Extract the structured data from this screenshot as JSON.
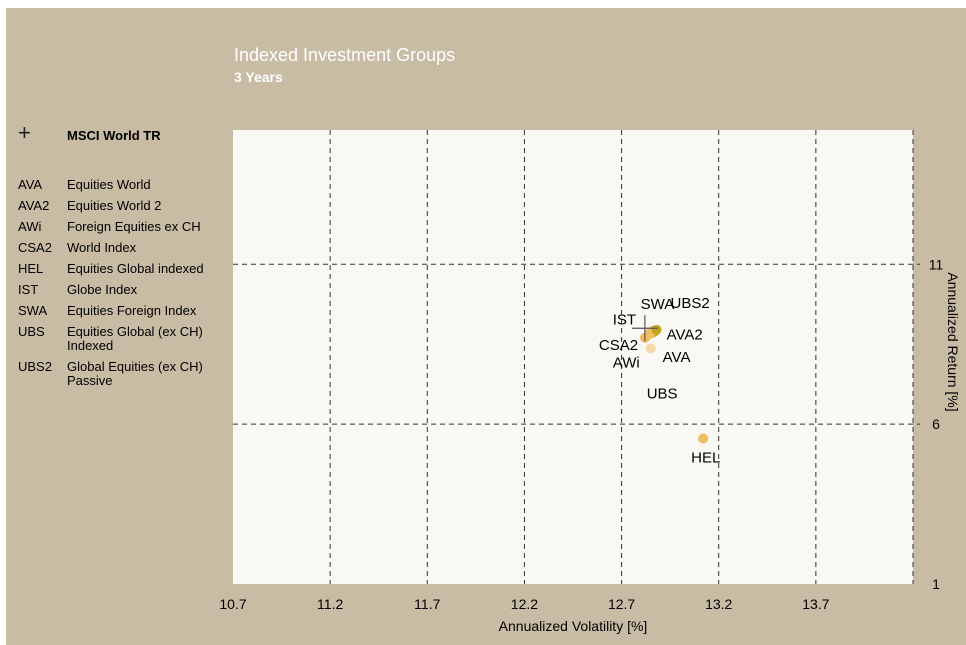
{
  "title": "Indexed Investment Groups",
  "subtitle": "3 Years",
  "benchmark": {
    "symbol": "+",
    "label": "MSCI World TR"
  },
  "legend": [
    {
      "code": "AVA",
      "desc": "Equities World"
    },
    {
      "code": "AVA2",
      "desc": "Equities World 2"
    },
    {
      "code": "AWi",
      "desc": "Foreign Equities ex CH"
    },
    {
      "code": "CSA2",
      "desc": "World Index"
    },
    {
      "code": "HEL",
      "desc": "Equities Global indexed"
    },
    {
      "code": "IST",
      "desc": "Globe Index"
    },
    {
      "code": "SWA",
      "desc": "Equities Foreign Index"
    },
    {
      "code": "UBS",
      "desc": "Equities Global (ex CH)\nIndexed"
    },
    {
      "code": "UBS2",
      "desc": "Global Equities (ex CH)\nPassive"
    }
  ],
  "chart_data": {
    "type": "scatter",
    "xlabel": "Annualized Volatility [%]",
    "ylabel": "Annualized Return [%]",
    "xlim": [
      10.7,
      14.2
    ],
    "ylim": [
      1,
      15.2
    ],
    "xticks": [
      10.7,
      11.2,
      11.7,
      12.2,
      12.7,
      13.2,
      13.7
    ],
    "yticks": [
      1,
      6,
      11
    ],
    "grid": "dashed",
    "colors": {
      "background": "#c8bca5",
      "plot": "#f9f8f5",
      "light": "#f5d9a8",
      "mid": "#f0bd60",
      "dark": "#c5a51f"
    },
    "points": [
      {
        "label": "AVA",
        "x": 12.86,
        "y": 8.85,
        "color": "#f0bd60"
      },
      {
        "label": "AVA2",
        "x": 12.87,
        "y": 8.9,
        "color": "#c5a51f"
      },
      {
        "label": "AWi",
        "x": 12.84,
        "y": 8.8,
        "color": "#f0bd60"
      },
      {
        "label": "CSA2",
        "x": 12.82,
        "y": 8.7,
        "color": "#f0bd60"
      },
      {
        "label": "HEL",
        "x": 13.12,
        "y": 5.55,
        "color": "#f0bd60"
      },
      {
        "label": "IST",
        "x": 12.85,
        "y": 8.87,
        "color": "#f0bd60"
      },
      {
        "label": "SWA",
        "x": 12.86,
        "y": 8.92,
        "color": "#f0bd60"
      },
      {
        "label": "UBS",
        "x": 12.85,
        "y": 8.37,
        "color": "#f5d9a8"
      },
      {
        "label": "UBS2",
        "x": 12.88,
        "y": 8.95,
        "color": "#c5a51f"
      }
    ],
    "benchmark_point": {
      "label": "MSCI World TR",
      "x": 12.82,
      "y": 9.0
    }
  }
}
